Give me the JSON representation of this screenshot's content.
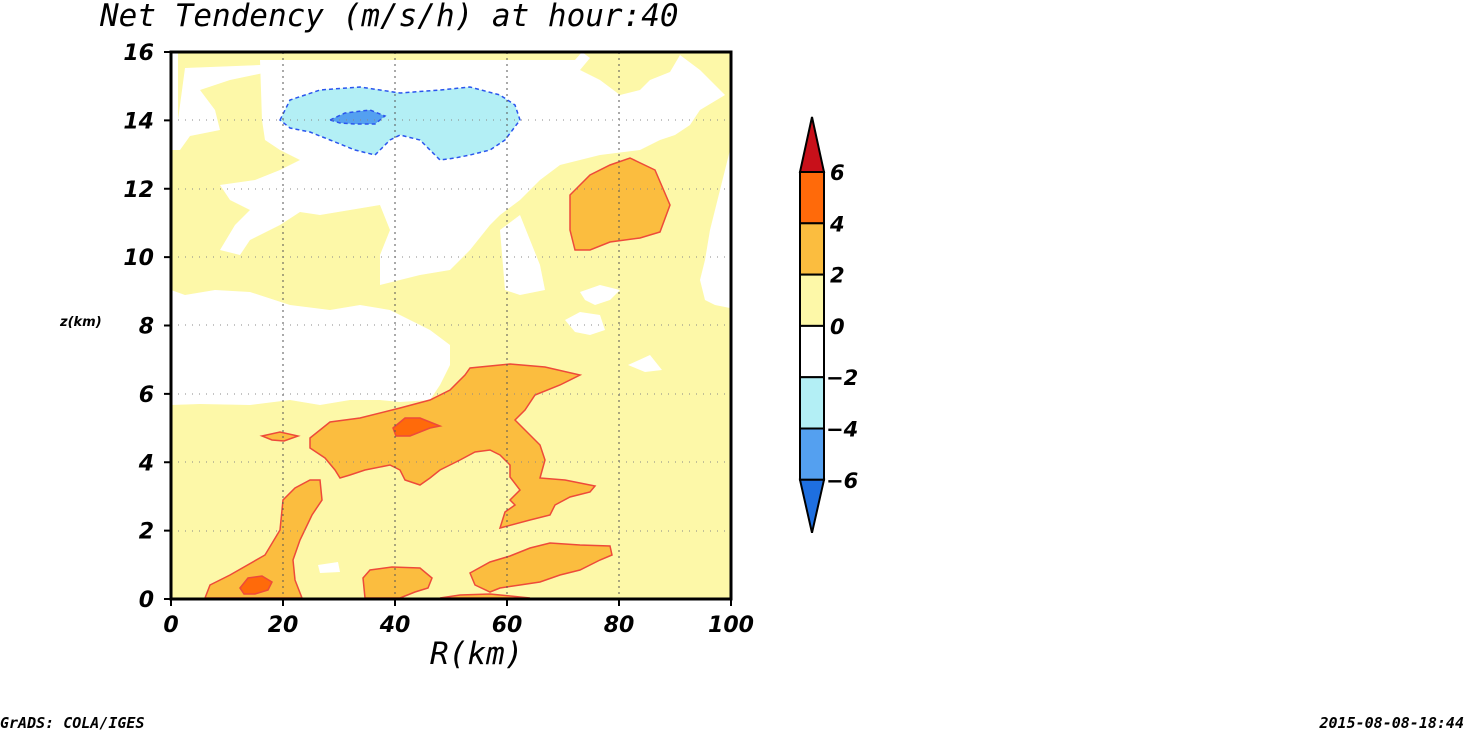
{
  "chart_data": {
    "type": "heatmap",
    "title": "Net Tendency (m/s/h) at hour:40",
    "xlabel": "R(km)",
    "ylabel": "z(km)",
    "xlim": [
      0,
      100
    ],
    "ylim": [
      0,
      16
    ],
    "x_ticks": [
      "0",
      "20",
      "40",
      "60",
      "80",
      "100"
    ],
    "y_ticks": [
      "0",
      "2",
      "4",
      "6",
      "8",
      "10",
      "12",
      "14",
      "16"
    ],
    "grid": true,
    "colorbar": {
      "orientation": "vertical",
      "placement": "right",
      "levels": [
        "6",
        "4",
        "2",
        "0",
        "-2",
        "-4",
        "-6"
      ],
      "colors": [
        "#c8101a",
        "#ff6a0a",
        "#fbbd3f",
        "#fdf8a8",
        "#ffffff",
        "#b3eff5",
        "#54a0f0",
        "#1e6fe0"
      ]
    },
    "regions": [
      {
        "level": "2 to 4",
        "color": "#fbbd3f",
        "center": [
          44,
          4.7
        ]
      },
      {
        "level": "2 to 4",
        "color": "#fbbd3f",
        "center": [
          81,
          11.5
        ]
      },
      {
        "level": "2 to 4",
        "color": "#fbbd3f",
        "center": [
          17,
          1.5
        ]
      },
      {
        "level": "2 to 4",
        "color": "#fbbd3f",
        "center": [
          65,
          1.0
        ]
      },
      {
        "level": "4 to 6",
        "color": "#ff6a0a",
        "center": [
          43,
          5.0
        ]
      },
      {
        "level": "4 to 6",
        "color": "#ff6a0a",
        "center": [
          15,
          0.4
        ]
      },
      {
        "level": "-4 to -2",
        "color": "#b3eff5",
        "center": [
          41,
          14.1
        ]
      },
      {
        "level": "-6 to -4",
        "color": "#54a0f0",
        "center": [
          34,
          14.0
        ]
      }
    ]
  },
  "footer": {
    "left": "GrADS: COLA/IGES",
    "right": "2015-08-08-18:44"
  }
}
